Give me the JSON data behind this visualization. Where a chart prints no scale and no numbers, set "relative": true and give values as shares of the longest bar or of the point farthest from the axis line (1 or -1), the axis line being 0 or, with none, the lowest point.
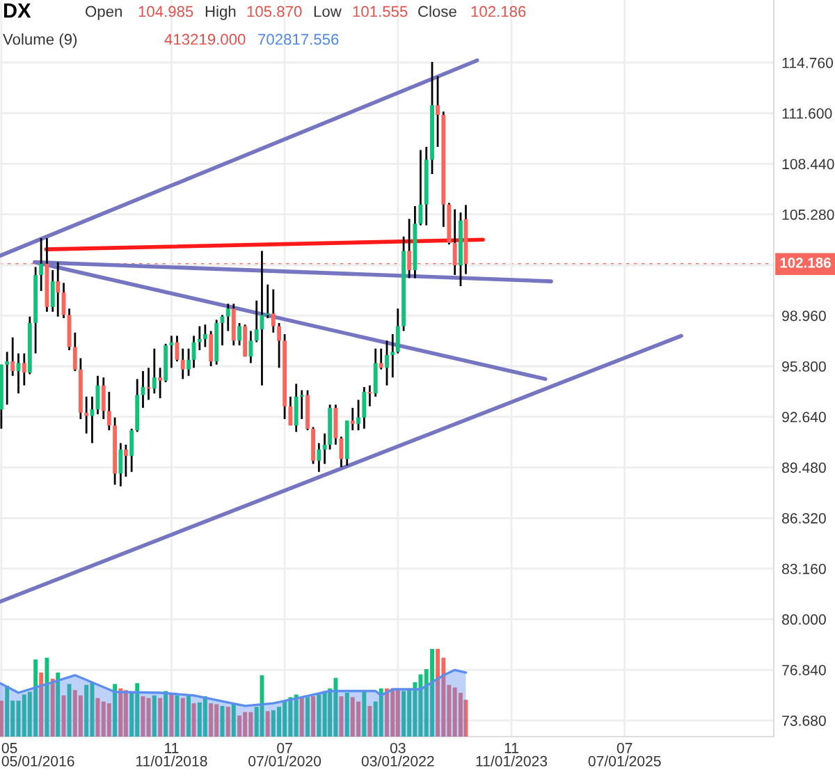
{
  "chart_data": [
    {
      "type": "candlestick",
      "title": "DX",
      "annotations": [
        "Open",
        "104.985",
        "High",
        "105.870",
        "Low",
        "101.555",
        "Close",
        "102.186"
      ],
      "x": [
        "2016-05",
        "2016-06",
        "2016-07",
        "2016-08",
        "2016-09",
        "2016-10",
        "2016-11",
        "2016-12",
        "2017-01",
        "2017-02",
        "2017-03",
        "2017-04",
        "2017-05",
        "2017-06",
        "2017-07",
        "2017-08",
        "2017-09",
        "2017-10",
        "2017-11",
        "2017-12",
        "2018-01",
        "2018-02",
        "2018-03",
        "2018-04",
        "2018-05",
        "2018-06",
        "2018-07",
        "2018-08",
        "2018-09",
        "2018-10",
        "2018-11",
        "2018-12",
        "2019-01",
        "2019-02",
        "2019-03",
        "2019-04",
        "2019-05",
        "2019-06",
        "2019-07",
        "2019-08",
        "2019-09",
        "2019-10",
        "2019-11",
        "2019-12",
        "2020-01",
        "2020-02",
        "2020-03",
        "2020-04",
        "2020-05",
        "2020-06",
        "2020-07",
        "2020-08",
        "2020-09",
        "2020-10",
        "2020-11",
        "2020-12",
        "2021-01",
        "2021-02",
        "2021-03",
        "2021-04",
        "2021-05",
        "2021-06",
        "2021-07",
        "2021-08",
        "2021-09",
        "2021-10",
        "2021-11",
        "2021-12",
        "2022-01",
        "2022-02",
        "2022-03",
        "2022-04",
        "2022-05",
        "2022-06",
        "2022-07",
        "2022-08",
        "2022-09",
        "2022-10",
        "2022-11",
        "2022-12",
        "2023-01",
        "2023-02",
        "2023-03"
      ],
      "ohlc": [
        [
          93.1,
          95.9,
          91.9,
          95.9
        ],
        [
          95.9,
          96.7,
          93.4,
          96.1
        ],
        [
          96.1,
          97.6,
          95.2,
          95.5
        ],
        [
          95.5,
          96.6,
          94.1,
          96.0
        ],
        [
          96.0,
          96.6,
          94.6,
          95.4
        ],
        [
          95.4,
          98.9,
          95.3,
          98.5
        ],
        [
          98.5,
          102.0,
          96.6,
          101.5
        ],
        [
          101.5,
          103.8,
          100.5,
          102.2
        ],
        [
          102.2,
          103.8,
          99.2,
          99.5
        ],
        [
          99.5,
          101.8,
          99.2,
          101.1
        ],
        [
          101.1,
          102.3,
          98.9,
          100.4
        ],
        [
          100.4,
          101.0,
          98.8,
          99.0
        ],
        [
          99.0,
          99.4,
          96.8,
          97.0
        ],
        [
          97.0,
          97.9,
          95.5,
          95.6
        ],
        [
          95.6,
          96.3,
          92.5,
          92.9
        ],
        [
          92.9,
          93.9,
          91.6,
          92.7
        ],
        [
          92.7,
          93.9,
          91.0,
          93.1
        ],
        [
          93.1,
          95.2,
          92.8,
          94.6
        ],
        [
          94.6,
          95.1,
          92.5,
          93.0
        ],
        [
          93.0,
          94.2,
          91.8,
          92.1
        ],
        [
          92.1,
          92.6,
          88.4,
          89.1
        ],
        [
          89.1,
          91.0,
          88.3,
          90.6
        ],
        [
          90.6,
          90.9,
          88.9,
          90.2
        ],
        [
          90.2,
          91.9,
          89.2,
          91.8
        ],
        [
          91.8,
          95.0,
          91.7,
          94.0
        ],
        [
          94.0,
          95.5,
          93.2,
          94.5
        ],
        [
          94.5,
          95.7,
          93.7,
          94.4
        ],
        [
          94.4,
          96.9,
          94.1,
          95.1
        ],
        [
          95.1,
          95.7,
          93.8,
          94.9
        ],
        [
          94.9,
          97.2,
          94.8,
          97.1
        ],
        [
          97.1,
          97.7,
          95.7,
          97.3
        ],
        [
          97.3,
          97.7,
          96.1,
          96.2
        ],
        [
          96.2,
          96.9,
          95.0,
          95.6
        ],
        [
          95.6,
          96.9,
          95.2,
          96.2
        ],
        [
          96.2,
          97.7,
          95.7,
          97.3
        ],
        [
          97.3,
          98.3,
          96.8,
          97.5
        ],
        [
          97.5,
          98.4,
          97.0,
          97.8
        ],
        [
          97.8,
          98.0,
          95.8,
          96.1
        ],
        [
          96.1,
          98.7,
          95.9,
          98.5
        ],
        [
          98.5,
          99.0,
          97.1,
          98.9
        ],
        [
          98.9,
          99.7,
          98.0,
          99.4
        ],
        [
          99.4,
          99.7,
          97.1,
          97.4
        ],
        [
          97.4,
          98.5,
          97.1,
          98.3
        ],
        [
          98.3,
          98.4,
          96.4,
          96.4
        ],
        [
          96.4,
          98.0,
          96.0,
          97.4
        ],
        [
          97.4,
          99.9,
          97.3,
          98.1
        ],
        [
          98.1,
          103.0,
          94.6,
          99.0
        ],
        [
          99.0,
          100.9,
          98.8,
          99.1
        ],
        [
          99.1,
          100.6,
          97.9,
          98.3
        ],
        [
          98.3,
          98.5,
          95.7,
          97.4
        ],
        [
          97.4,
          97.8,
          92.5,
          93.3
        ],
        [
          93.3,
          93.9,
          92.1,
          92.1
        ],
        [
          92.1,
          94.7,
          91.7,
          93.9
        ],
        [
          93.9,
          94.3,
          92.5,
          94.0
        ],
        [
          94.0,
          94.3,
          91.8,
          91.9
        ],
        [
          91.9,
          92.0,
          89.7,
          89.9
        ],
        [
          89.9,
          91.0,
          89.2,
          90.6
        ],
        [
          90.6,
          91.6,
          89.7,
          90.9
        ],
        [
          90.9,
          93.4,
          90.6,
          93.2
        ],
        [
          93.2,
          93.4,
          90.9,
          91.3
        ],
        [
          91.3,
          91.4,
          89.5,
          90.0
        ],
        [
          90.0,
          92.4,
          89.6,
          92.4
        ],
        [
          92.4,
          93.2,
          91.8,
          92.2
        ],
        [
          92.2,
          93.7,
          91.8,
          92.6
        ],
        [
          92.6,
          94.5,
          91.9,
          94.2
        ],
        [
          94.2,
          94.6,
          93.3,
          94.1
        ],
        [
          94.1,
          96.9,
          93.9,
          96.0
        ],
        [
          96.0,
          96.9,
          95.6,
          95.7
        ],
        [
          95.7,
          97.4,
          94.6,
          96.5
        ],
        [
          96.5,
          97.8,
          95.1,
          96.7
        ],
        [
          96.7,
          99.4,
          96.6,
          98.3
        ],
        [
          98.3,
          103.9,
          98.0,
          103.0
        ],
        [
          103.0,
          105.0,
          101.3,
          101.8
        ],
        [
          101.8,
          105.8,
          101.3,
          104.7
        ],
        [
          104.7,
          109.3,
          104.6,
          105.9
        ],
        [
          105.9,
          109.5,
          104.6,
          108.7
        ],
        [
          108.7,
          114.8,
          107.8,
          112.1
        ],
        [
          112.1,
          113.9,
          109.5,
          111.5
        ],
        [
          111.5,
          111.7,
          104.5,
          105.9
        ],
        [
          105.9,
          106.0,
          103.4,
          103.5
        ],
        [
          103.5,
          105.6,
          101.5,
          102.1
        ],
        [
          102.1,
          105.4,
          100.8,
          104.9
        ],
        [
          104.985,
          105.87,
          101.555,
          102.186
        ]
      ],
      "colors": [
        "#12c17a",
        "#12c17a",
        "#f7675e",
        "#12c17a",
        "#f7675e",
        "#12c17a",
        "#12c17a",
        "#12c17a",
        "#f7675e",
        "#12c17a",
        "#f7675e",
        "#f7675e",
        "#f7675e",
        "#f7675e",
        "#f7675e",
        "#f7675e",
        "#12c17a",
        "#12c17a",
        "#f7675e",
        "#f7675e",
        "#f7675e",
        "#12c17a",
        "#f7675e",
        "#12c17a",
        "#12c17a",
        "#12c17a",
        "#f7675e",
        "#12c17a",
        "#f7675e",
        "#12c17a",
        "#12c17a",
        "#f7675e",
        "#f7675e",
        "#12c17a",
        "#12c17a",
        "#12c17a",
        "#12c17a",
        "#f7675e",
        "#12c17a",
        "#12c17a",
        "#12c17a",
        "#f7675e",
        "#12c17a",
        "#f7675e",
        "#12c17a",
        "#12c17a",
        "#12c17a",
        "#12c17a",
        "#f7675e",
        "#f7675e",
        "#f7675e",
        "#f7675e",
        "#12c17a",
        "#12c17a",
        "#f7675e",
        "#f7675e",
        "#12c17a",
        "#12c17a",
        "#12c17a",
        "#f7675e",
        "#f7675e",
        "#12c17a",
        "#f7675e",
        "#12c17a",
        "#12c17a",
        "#f7675e",
        "#12c17a",
        "#f7675e",
        "#12c17a",
        "#12c17a",
        "#12c17a",
        "#12c17a",
        "#f7675e",
        "#12c17a",
        "#12c17a",
        "#12c17a",
        "#12c17a",
        "#f7675e",
        "#f7675e",
        "#f7675e",
        "#f7675e",
        "#12c17a",
        "#f7675e"
      ],
      "series": [
        {
          "type": "line",
          "color": "#7575c2",
          "x": [
            "2016-04-24",
            "2023-05"
          ],
          "values": [
            102.7,
            114.9
          ]
        },
        {
          "type": "line",
          "color": "#ff1a1a",
          "x": [
            "2016-12-28",
            "2023-06"
          ],
          "values": [
            103.1,
            103.7
          ]
        },
        {
          "type": "line",
          "color": "#7575c2",
          "x": [
            "2016-10-28",
            "2024-06"
          ],
          "values": [
            102.3,
            101.1
          ]
        },
        {
          "type": "line",
          "color": "#7575c2",
          "x": [
            "2016-10-28",
            "2024-05"
          ],
          "values": [
            102.3,
            95.0
          ]
        },
        {
          "type": "line",
          "color": "#7575c2",
          "x": [
            "2016-04-24",
            "2026-05"
          ],
          "values": [
            81.1,
            97.7
          ]
        }
      ],
      "ref_lines": [
        {
          "axis": "y",
          "value": 102.186,
          "label": "102.186",
          "color": "#f7675e"
        }
      ],
      "xlim": [
        "2016-04-24",
        "2027-09-10"
      ],
      "xticks": [
        {
          "value": "2016-05-01",
          "label": "05\n05/01/2016"
        },
        {
          "value": "2018-11-01",
          "label": "11\n11/01/2018"
        },
        {
          "value": "2020-07-01",
          "label": "07\n07/01/2020"
        },
        {
          "value": "2022-03-01",
          "label": "03\n03/01/2022"
        },
        {
          "value": "2023-11-01",
          "label": "11\n11/01/2023"
        },
        {
          "value": "2025-07-01",
          "label": "07\n07/01/2025"
        }
      ],
      "ylim": [
        72.67,
        118.67
      ],
      "yticks": [
        {
          "value": 73.68,
          "label": "73.680"
        },
        {
          "value": 76.84,
          "label": "76.840"
        },
        {
          "value": 80.0,
          "label": "80.000"
        },
        {
          "value": 83.16,
          "label": "83.160"
        },
        {
          "value": 86.32,
          "label": "86.320"
        },
        {
          "value": 89.48,
          "label": "89.480"
        },
        {
          "value": 92.64,
          "label": "92.640"
        },
        {
          "value": 95.8,
          "label": "95.800"
        },
        {
          "value": 98.96,
          "label": "98.960"
        },
        {
          "value": 102.12,
          "label": null
        },
        {
          "value": 105.28,
          "label": "105.280"
        },
        {
          "value": 108.44,
          "label": "108.440"
        },
        {
          "value": 111.6,
          "label": "111.600"
        },
        {
          "value": 114.76,
          "label": "114.760"
        }
      ],
      "grid": true
    },
    {
      "type": "bar",
      "relative": true,
      "annotations": [
        "Volume (9)",
        "413219.000",
        "702817.556"
      ],
      "xlim": [
        "2016-04-24",
        "2027-09-10"
      ],
      "x": [
        "2016-05",
        "2016-06",
        "2016-07",
        "2016-08",
        "2016-09",
        "2016-10",
        "2016-11",
        "2016-12",
        "2017-01",
        "2017-02",
        "2017-03",
        "2017-04",
        "2017-05",
        "2017-06",
        "2017-07",
        "2017-08",
        "2017-09",
        "2017-10",
        "2017-11",
        "2017-12",
        "2018-01",
        "2018-02",
        "2018-03",
        "2018-04",
        "2018-05",
        "2018-06",
        "2018-07",
        "2018-08",
        "2018-09",
        "2018-10",
        "2018-11",
        "2018-12",
        "2019-01",
        "2019-02",
        "2019-03",
        "2019-04",
        "2019-05",
        "2019-06",
        "2019-07",
        "2019-08",
        "2019-09",
        "2019-10",
        "2019-11",
        "2019-12",
        "2020-01",
        "2020-02",
        "2020-03",
        "2020-04",
        "2020-05",
        "2020-06",
        "2020-07",
        "2020-08",
        "2020-09",
        "2020-10",
        "2020-11",
        "2020-12",
        "2021-01",
        "2021-02",
        "2021-03",
        "2021-04",
        "2021-05",
        "2021-06",
        "2021-07",
        "2021-08",
        "2021-09",
        "2021-10",
        "2021-11",
        "2021-12",
        "2022-01",
        "2022-02",
        "2022-03",
        "2022-04",
        "2022-05",
        "2022-06",
        "2022-07",
        "2022-08",
        "2022-09",
        "2022-10",
        "2022-11",
        "2022-12",
        "2023-01",
        "2023-02",
        "2023-03"
      ],
      "series": [
        {
          "type": "bar",
          "values": [
            0.41,
            0.58,
            0.41,
            0.41,
            0.48,
            0.51,
            0.88,
            0.73,
            0.9,
            0.66,
            0.73,
            0.47,
            0.6,
            0.53,
            0.47,
            0.59,
            0.62,
            0.44,
            0.4,
            0.38,
            0.6,
            0.55,
            0.53,
            0.5,
            0.61,
            0.46,
            0.44,
            0.47,
            0.44,
            0.52,
            0.5,
            0.47,
            0.44,
            0.47,
            0.38,
            0.39,
            0.46,
            0.38,
            0.37,
            0.35,
            0.34,
            0.38,
            0.24,
            0.28,
            0.28,
            0.34,
            0.7,
            0.29,
            0.3,
            0.34,
            0.4,
            0.45,
            0.48,
            0.45,
            0.45,
            0.46,
            0.48,
            0.52,
            0.55,
            0.67,
            0.46,
            0.5,
            0.45,
            0.4,
            0.52,
            0.35,
            0.4,
            0.55,
            0.55,
            0.55,
            0.55,
            0.52,
            0.55,
            0.62,
            0.71,
            0.77,
            1.0,
            1.0,
            0.9,
            0.59,
            0.56,
            0.5,
            0.42
          ],
          "colors": [
            "#f7675e",
            "#12c17a",
            "#12c17a",
            "#12c17a",
            "#12c17a",
            "#12c17a",
            "#12c17a",
            "#f7675e",
            "#12c17a",
            "#f7675e",
            "#12c17a",
            "#f7675e",
            "#12c17a",
            "#f7675e",
            "#f7675e",
            "#12c17a",
            "#12c17a",
            "#f7675e",
            "#f7675e",
            "#f7675e",
            "#12c17a",
            "#f7675e",
            "#f7675e",
            "#12c17a",
            "#12c17a",
            "#f7675e",
            "#f7675e",
            "#12c17a",
            "#f7675e",
            "#12c17a",
            "#f7675e",
            "#12c17a",
            "#f7675e",
            "#12c17a",
            "#f7675e",
            "#12c17a",
            "#12c17a",
            "#f7675e",
            "#f7675e",
            "#12c17a",
            "#f7675e",
            "#12c17a",
            "#f7675e",
            "#f7675e",
            "#f7675e",
            "#12c17a",
            "#12c17a",
            "#f7675e",
            "#12c17a",
            "#12c17a",
            "#12c17a",
            "#12c17a",
            "#12c17a",
            "#f7675e",
            "#12c17a",
            "#f7675e",
            "#12c17a",
            "#12c17a",
            "#12c17a",
            "#12c17a",
            "#f7675e",
            "#12c17a",
            "#f7675e",
            "#f7675e",
            "#12c17a",
            "#f7675e",
            "#12c17a",
            "#12c17a",
            "#f7675e",
            "#f7675e",
            "#f7675e",
            "#12c17a",
            "#12c17a",
            "#12c17a",
            "#12c17a",
            "#12c17a",
            "#12c17a",
            "#f7675e",
            "#f7675e",
            "#f7675e",
            "#f7675e",
            "#f7675e",
            "#f7675e"
          ]
        },
        {
          "type": "area",
          "color": "#5b8def",
          "x": [
            "2016-04-24",
            "2016-08",
            "2017-06",
            "2018-01",
            "2018-09",
            "2019-03",
            "2019-12",
            "2020-05",
            "2020-10",
            "2021-03",
            "2021-11",
            "2021-12",
            "2022-02",
            "2022-07",
            "2022-11",
            "2023-01",
            "2023-03"
          ],
          "values": [
            0.61,
            0.5,
            0.7,
            0.51,
            0.5,
            0.47,
            0.35,
            0.38,
            0.45,
            0.52,
            0.52,
            0.47,
            0.54,
            0.54,
            0.7,
            0.76,
            0.73
          ]
        }
      ]
    }
  ]
}
